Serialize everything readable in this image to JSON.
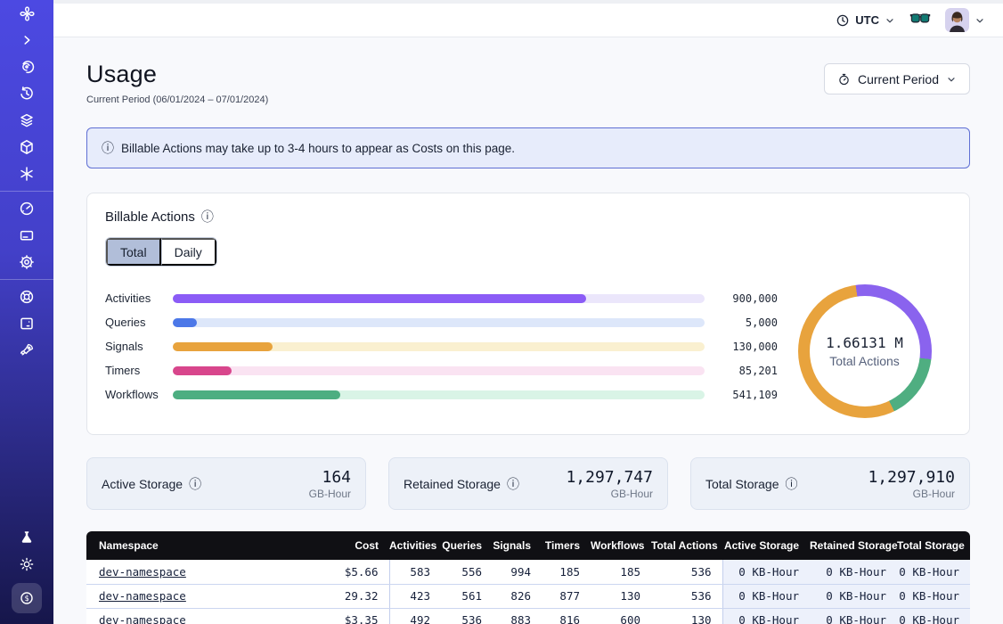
{
  "topbar": {
    "timezone_label": "UTC",
    "icons": [
      "clock-icon",
      "chevron-down-icon",
      "glasses-icon",
      "avatar",
      "chevron-down-icon"
    ]
  },
  "sidebar": {
    "icons": [
      "temporal-logo",
      "collapse-chevron-icon",
      "namespaces-spiral-icon",
      "schedules-clock-icon",
      "layers-icon",
      "deployments-cube-icon",
      "nexus-asterisk-icon",
      "usage-gauge-icon",
      "billing-card-icon",
      "settings-gear-icon",
      "support-lifering-icon",
      "feedback-monitor-icon",
      "getting-started-rocket-icon",
      "labs-flask-icon",
      "theme-sun-icon",
      "usage-dollar-icon-active"
    ]
  },
  "page": {
    "title": "Usage",
    "subtitle": "Current Period (06/01/2024 – 07/01/2024)",
    "period_button_label": "Current Period"
  },
  "banner": {
    "text": "Billable Actions may take up to 3-4 hours to appear as Costs on this page."
  },
  "billable_actions": {
    "title": "Billable Actions",
    "tabs": [
      {
        "label": "Total",
        "selected": true
      },
      {
        "label": "Daily",
        "selected": false
      }
    ]
  },
  "chart_data": [
    {
      "type": "bar",
      "orientation": "horizontal",
      "title": "Billable Actions",
      "categories": [
        "Activities",
        "Queries",
        "Signals",
        "Timers",
        "Workflows"
      ],
      "values": [
        900000,
        5000,
        130000,
        85201,
        541109
      ],
      "value_labels": [
        "900,000",
        "5,000",
        "130,000",
        "85,201",
        "541,109"
      ],
      "bar_colors": [
        "#8b5cf6",
        "#4c78e8",
        "#e8a33d",
        "#d8468c",
        "#4dae81"
      ],
      "track_colors": [
        "#ebe6fb",
        "#dde7fa",
        "#faf0d0",
        "#fae3f2",
        "#d9f4e6"
      ],
      "fill_pct": [
        77.7,
        4.6,
        18.8,
        11.1,
        31.5
      ]
    },
    {
      "type": "donut",
      "center_value": "1.66131 M",
      "center_label": "Total Actions",
      "start_angle_deg": -8,
      "segments": [
        {
          "name": "activities",
          "color": "#8a63ee",
          "sweep_deg": 105
        },
        {
          "name": "workflows",
          "color": "#4fae81",
          "sweep_deg": 57
        },
        {
          "name": "signals",
          "color": "#e8a33d",
          "sweep_deg": 198
        }
      ]
    }
  ],
  "storage_cards": [
    {
      "label": "Active Storage",
      "value": "164",
      "unit": "GB-Hour"
    },
    {
      "label": "Retained Storage",
      "value": "1,297,747",
      "unit": "GB-Hour"
    },
    {
      "label": "Total Storage",
      "value": "1,297,910",
      "unit": "GB-Hour"
    }
  ],
  "table": {
    "columns": [
      "Namespace",
      "Cost",
      "Activities",
      "Queries",
      "Signals",
      "Timers",
      "Workflows",
      "Total Actions",
      "Active Storage",
      "Retained Storage",
      "Total Storage"
    ],
    "rows": [
      {
        "namespace": "dev-namespace",
        "values": [
          "$5.66",
          "583",
          "556",
          "994",
          "185",
          "185",
          "536",
          "0 KB-Hour",
          "0 KB-Hour",
          "0 KB-Hour"
        ]
      },
      {
        "namespace": "dev-namespace",
        "values": [
          "29.32",
          "423",
          "561",
          "826",
          "877",
          "130",
          "536",
          "0 KB-Hour",
          "0 KB-Hour",
          "0 KB-Hour"
        ]
      },
      {
        "namespace": "dev-namespace",
        "values": [
          "$3.35",
          "492",
          "536",
          "883",
          "816",
          "600",
          "130",
          "0 KB-Hour",
          "0 KB-Hour",
          "0 KB-Hour"
        ]
      }
    ]
  },
  "colors": {
    "sidebar_top": "#4c49e2",
    "sidebar_bottom": "#16164a",
    "banner_bg": "#e7ecfb",
    "banner_border": "#5f6fd4",
    "table_header_bg": "#101014",
    "storage_card_bg": "#edf1f8",
    "selected_tab_bg": "#b1bed9"
  }
}
